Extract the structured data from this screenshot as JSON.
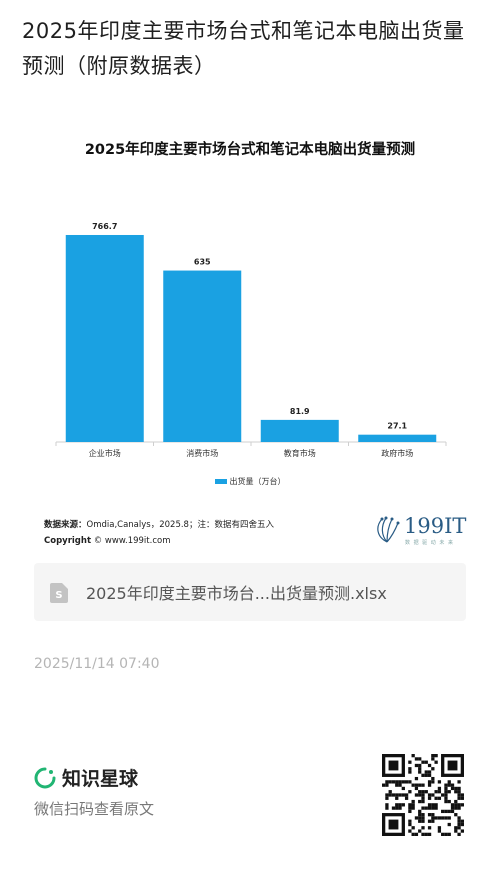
{
  "header": {
    "title": "2025年印度主要市场台式和笔记本电脑出货量预测（附原数据表）"
  },
  "chart_data": {
    "type": "bar",
    "title": "2025年印度主要市场台式和笔记本电脑出货量预测",
    "categories": [
      "企业市场",
      "消费市场",
      "教育市场",
      "政府市场"
    ],
    "series": [
      {
        "name": "出货量（万台）",
        "values": [
          766.7,
          635,
          81.9,
          27.1
        ],
        "labels": [
          "766.7",
          "635",
          "81.9",
          "27.1"
        ]
      }
    ],
    "ylim": [
      0,
      800
    ],
    "grid": false,
    "legend_position": "bottom",
    "bar_color": "#1aa1e2"
  },
  "footer": {
    "source_label": "数据来源：",
    "source_text": "Omdia,Canalys，2025.8；注：数据有四舍五入",
    "copyright_label": "Copyright",
    "copyright_text": "© www.199it.com",
    "logo_text": "199IT",
    "logo_sub": "数 据 驱 动 未 来"
  },
  "file": {
    "name": "2025年印度主要市场台...出货量预测.xlsx",
    "icon": "spreadsheet-file-icon"
  },
  "timestamp": "2025/11/14 07:40",
  "brand": {
    "name": "知识星球",
    "subtitle": "微信扫码查看原文",
    "icon": "zsxq-logo-icon"
  },
  "colors": {
    "accent": "#1aa1e2",
    "brand_green": "#21b573"
  }
}
